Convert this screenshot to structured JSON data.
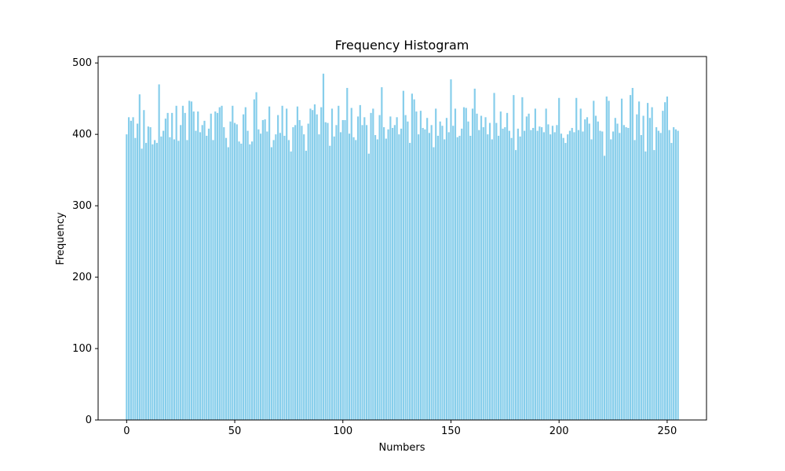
{
  "chart_data": {
    "type": "bar",
    "title": "Frequency Histogram",
    "xlabel": "Numbers",
    "ylabel": "Frequency",
    "color": "#87ceeb",
    "x": [
      0,
      1,
      2,
      3,
      4,
      5,
      6,
      7,
      8,
      9,
      10,
      11,
      12,
      13,
      14,
      15,
      16,
      17,
      18,
      19,
      20,
      21,
      22,
      23,
      24,
      25,
      26,
      27,
      28,
      29,
      30,
      31,
      32,
      33,
      34,
      35,
      36,
      37,
      38,
      39,
      40,
      41,
      42,
      43,
      44,
      45,
      46,
      47,
      48,
      49,
      50,
      51,
      52,
      53,
      54,
      55,
      56,
      57,
      58,
      59,
      60,
      61,
      62,
      63,
      64,
      65,
      66,
      67,
      68,
      69,
      70,
      71,
      72,
      73,
      74,
      75,
      76,
      77,
      78,
      79,
      80,
      81,
      82,
      83,
      84,
      85,
      86,
      87,
      88,
      89,
      90,
      91,
      92,
      93,
      94,
      95,
      96,
      97,
      98,
      99,
      100,
      101,
      102,
      103,
      104,
      105,
      106,
      107,
      108,
      109,
      110,
      111,
      112,
      113,
      114,
      115,
      116,
      117,
      118,
      119,
      120,
      121,
      122,
      123,
      124,
      125,
      126,
      127,
      128,
      129,
      130,
      131,
      132,
      133,
      134,
      135,
      136,
      137,
      138,
      139,
      140,
      141,
      142,
      143,
      144,
      145,
      146,
      147,
      148,
      149,
      150,
      151,
      152,
      153,
      154,
      155,
      156,
      157,
      158,
      159,
      160,
      161,
      162,
      163,
      164,
      165,
      166,
      167,
      168,
      169,
      170,
      171,
      172,
      173,
      174,
      175,
      176,
      177,
      178,
      179,
      180,
      181,
      182,
      183,
      184,
      185,
      186,
      187,
      188,
      189,
      190,
      191,
      192,
      193,
      194,
      195,
      196,
      197,
      198,
      199,
      200,
      201,
      202,
      203,
      204,
      205,
      206,
      207,
      208,
      209,
      210,
      211,
      212,
      213,
      214,
      215,
      216,
      217,
      218,
      219,
      220,
      221,
      222,
      223,
      224,
      225,
      226,
      227,
      228,
      229,
      230,
      231,
      232,
      233,
      234,
      235,
      236,
      237,
      238,
      239,
      240,
      241,
      242,
      243,
      244,
      245,
      246,
      247,
      248,
      249,
      250,
      251,
      252,
      253,
      254,
      255
    ],
    "values": [
      400,
      424,
      419,
      424,
      395,
      415,
      456,
      380,
      434,
      388,
      411,
      410,
      386,
      392,
      388,
      470,
      397,
      405,
      422,
      430,
      396,
      430,
      393,
      440,
      391,
      413,
      440,
      430,
      392,
      447,
      446,
      432,
      405,
      432,
      403,
      413,
      419,
      398,
      408,
      429,
      392,
      432,
      430,
      438,
      440,
      410,
      395,
      382,
      418,
      440,
      416,
      414,
      390,
      387,
      428,
      438,
      405,
      386,
      390,
      449,
      459,
      407,
      401,
      420,
      421,
      404,
      439,
      382,
      392,
      400,
      427,
      402,
      440,
      398,
      436,
      392,
      376,
      410,
      413,
      439,
      420,
      412,
      400,
      377,
      415,
      436,
      434,
      442,
      428,
      400,
      438,
      485,
      417,
      416,
      384,
      436,
      397,
      413,
      440,
      403,
      420,
      420,
      465,
      401,
      437,
      396,
      392,
      425,
      441,
      413,
      424,
      413,
      373,
      430,
      436,
      399,
      393,
      427,
      466,
      410,
      394,
      407,
      425,
      409,
      413,
      424,
      400,
      408,
      461,
      427,
      418,
      388,
      457,
      449,
      432,
      400,
      433,
      409,
      407,
      423,
      402,
      413,
      382,
      436,
      398,
      418,
      412,
      393,
      423,
      403,
      477,
      412,
      436,
      396,
      398,
      408,
      438,
      437,
      418,
      398,
      436,
      464,
      429,
      406,
      426,
      410,
      424,
      400,
      416,
      393,
      458,
      416,
      398,
      432,
      408,
      410,
      430,
      405,
      395,
      455,
      378,
      408,
      397,
      452,
      405,
      425,
      429,
      406,
      409,
      436,
      405,
      411,
      410,
      403,
      436,
      414,
      400,
      412,
      403,
      413,
      451,
      401,
      395,
      388,
      400,
      405,
      409,
      403,
      451,
      406,
      436,
      404,
      421,
      424,
      415,
      393,
      447,
      426,
      418,
      405,
      404,
      370,
      453,
      447,
      393,
      404,
      423,
      415,
      402,
      450,
      413,
      410,
      409,
      455,
      465,
      392,
      428,
      446,
      399,
      426,
      376,
      444,
      423,
      438,
      378,
      410,
      405,
      402,
      433,
      445,
      453,
      406,
      388,
      410,
      407,
      405
    ],
    "xlim": [
      -13.19,
      268.19
    ],
    "xticks": [
      0,
      50,
      100,
      150,
      200,
      250
    ],
    "ylim": [
      0,
      509
    ],
    "yticks": [
      0,
      100,
      200,
      300,
      400,
      500
    ]
  }
}
